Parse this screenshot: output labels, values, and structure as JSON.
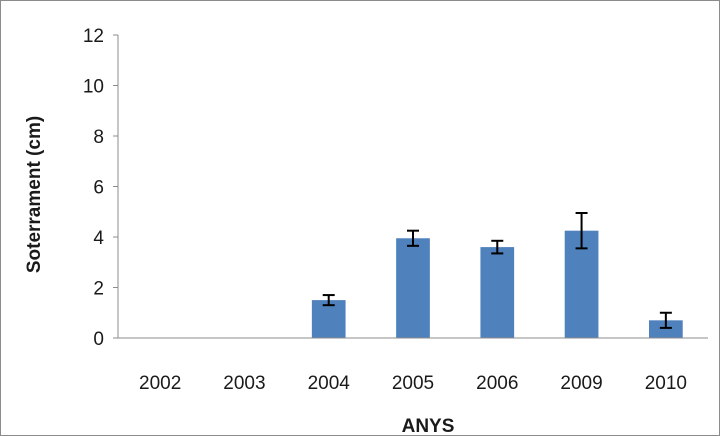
{
  "chart_data": {
    "type": "bar",
    "categories": [
      "2002",
      "2003",
      "2004",
      "2005",
      "2006",
      "2009",
      "2010"
    ],
    "values": [
      0,
      0,
      1.5,
      3.95,
      3.6,
      4.25,
      0.7
    ],
    "errors": [
      0,
      0,
      0.2,
      0.3,
      0.25,
      0.7,
      0.3
    ],
    "xlabel": "ANYS",
    "ylabel": "Soterrament (cm)",
    "ylim": [
      0,
      12
    ],
    "yticks": [
      0,
      2,
      4,
      6,
      8,
      10,
      12
    ],
    "grid": false,
    "bar_color": "#4f81bd"
  }
}
